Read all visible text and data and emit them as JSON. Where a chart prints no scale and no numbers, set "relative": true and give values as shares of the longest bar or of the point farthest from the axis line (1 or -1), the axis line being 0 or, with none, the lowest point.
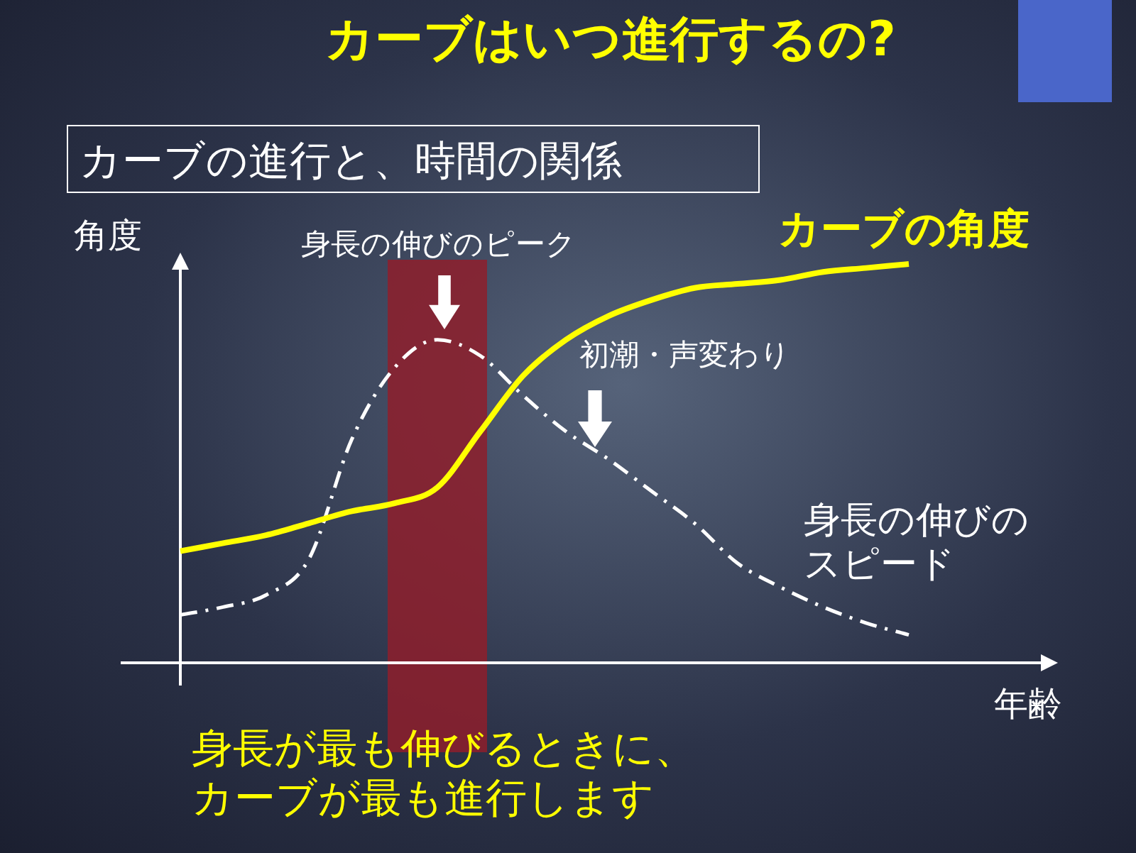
{
  "chart_data": {
    "type": "line",
    "title": "カーブはいつ進行するの?",
    "subtitle": "カーブの進行と、時間の関係",
    "xlabel": "年齢",
    "ylabel": "角度",
    "relative": true,
    "legend": false,
    "tick_labels": false,
    "marker": "none",
    "categories": [
      null,
      null,
      null,
      null,
      null,
      null,
      null,
      null,
      null,
      null,
      null,
      null,
      null,
      null,
      null,
      null,
      null,
      null
    ],
    "series": [
      {
        "name": "カーブの角度",
        "color": "#ffff00",
        "line_style": "solid",
        "values": [
          0.28,
          0.3,
          0.32,
          0.35,
          0.38,
          0.4,
          0.44,
          0.58,
          0.72,
          0.81,
          0.87,
          0.91,
          0.94,
          0.95,
          0.96,
          0.98,
          0.99,
          1
        ]
      },
      {
        "name": "身長の伸びのスピード",
        "color": "#ffffff",
        "line_style": "dashed",
        "values": [
          0.12,
          0.14,
          0.17,
          0.26,
          0.56,
          0.74,
          0.81,
          0.77,
          0.67,
          0.58,
          0.51,
          0.43,
          0.35,
          0.25,
          0.19,
          0.14,
          0.1,
          0.07
        ]
      }
    ],
    "annotations": [
      "身長の伸びのピーク",
      "初潮・声変わり",
      "身長が最も伸びるときに、カーブが最も進行します"
    ]
  }
}
